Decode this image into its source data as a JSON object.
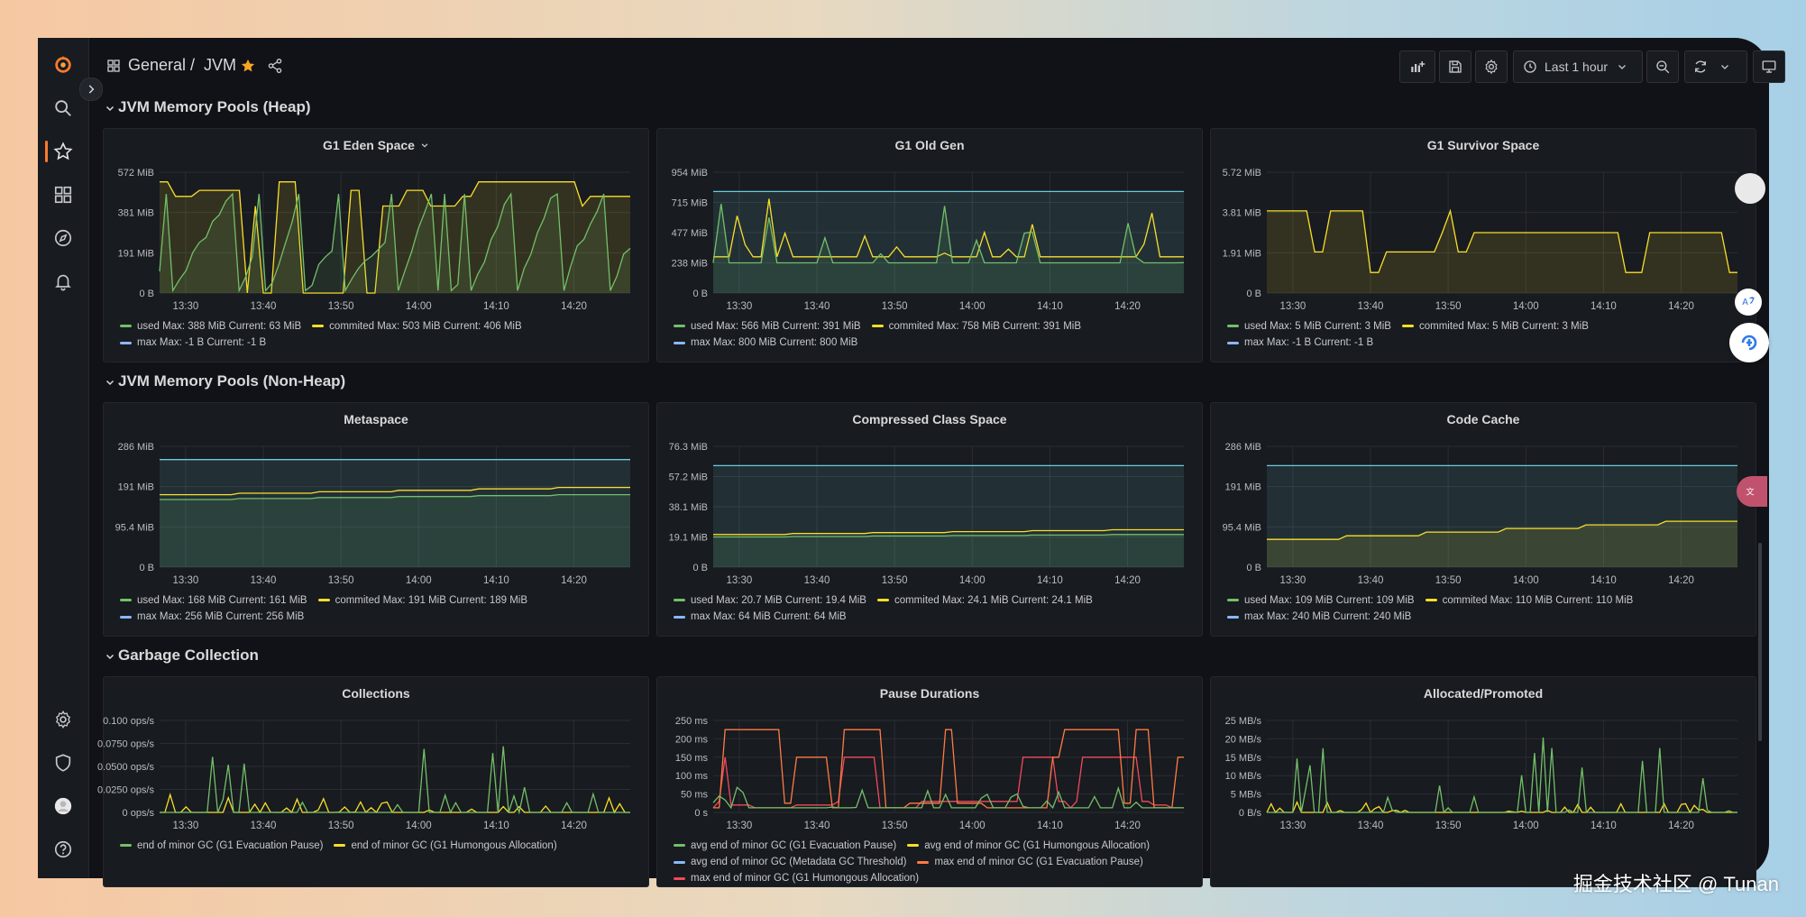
{
  "breadcrumb": {
    "parent": "General",
    "separator": "/",
    "current": "JVM"
  },
  "time_picker": {
    "label": "Last 1 hour"
  },
  "rows": [
    {
      "title": "JVM Memory Pools (Heap)"
    },
    {
      "title": "JVM Memory Pools (Non-Heap)"
    },
    {
      "title": "Garbage Collection"
    }
  ],
  "x_ticks": [
    "13:30",
    "13:40",
    "13:50",
    "14:00",
    "14:10",
    "14:20"
  ],
  "panels": [
    {
      "title": "G1 Eden Space",
      "has_menu": true,
      "y_ticks": [
        "572 MiB",
        "381 MiB",
        "191 MiB",
        "0 B"
      ],
      "legend": [
        [
          {
            "color": "#73bf69",
            "text": "used  Max: 388 MiB  Current: 63 MiB"
          },
          {
            "color": "#fade2a",
            "text": "commited  Max: 503 MiB  Current: 406 MiB"
          }
        ],
        [
          {
            "color": "#8ab8ff",
            "text": "max  Max: -1 B  Current: -1 B"
          }
        ]
      ]
    },
    {
      "title": "G1 Old Gen",
      "y_ticks": [
        "954 MiB",
        "715 MiB",
        "477 MiB",
        "238 MiB",
        "0 B"
      ],
      "legend": [
        [
          {
            "color": "#73bf69",
            "text": "used  Max: 566 MiB  Current: 391 MiB"
          },
          {
            "color": "#fade2a",
            "text": "commited  Max: 758 MiB  Current: 391 MiB"
          }
        ],
        [
          {
            "color": "#8ab8ff",
            "text": "max  Max: 800 MiB  Current: 800 MiB"
          }
        ]
      ]
    },
    {
      "title": "G1 Survivor Space",
      "y_ticks": [
        "5.72 MiB",
        "3.81 MiB",
        "1.91 MiB",
        "0 B"
      ],
      "legend": [
        [
          {
            "color": "#73bf69",
            "text": "used  Max: 5 MiB  Current: 3 MiB"
          },
          {
            "color": "#fade2a",
            "text": "commited  Max: 5 MiB  Current: 3 MiB"
          }
        ],
        [
          {
            "color": "#8ab8ff",
            "text": "max  Max: -1 B  Current: -1 B"
          }
        ]
      ]
    },
    {
      "title": "Metaspace",
      "y_ticks": [
        "286 MiB",
        "191 MiB",
        "95.4 MiB",
        "0 B"
      ],
      "legend": [
        [
          {
            "color": "#73bf69",
            "text": "used  Max: 168 MiB  Current: 161 MiB"
          },
          {
            "color": "#fade2a",
            "text": "commited  Max: 191 MiB  Current: 189 MiB"
          }
        ],
        [
          {
            "color": "#8ab8ff",
            "text": "max  Max: 256 MiB  Current: 256 MiB"
          }
        ]
      ]
    },
    {
      "title": "Compressed Class Space",
      "y_ticks": [
        "76.3 MiB",
        "57.2 MiB",
        "38.1 MiB",
        "19.1 MiB",
        "0 B"
      ],
      "legend": [
        [
          {
            "color": "#73bf69",
            "text": "used  Max: 20.7 MiB  Current: 19.4 MiB"
          },
          {
            "color": "#fade2a",
            "text": "commited  Max: 24.1 MiB  Current: 24.1 MiB"
          }
        ],
        [
          {
            "color": "#8ab8ff",
            "text": "max  Max: 64 MiB  Current: 64 MiB"
          }
        ]
      ]
    },
    {
      "title": "Code Cache",
      "y_ticks": [
        "286 MiB",
        "191 MiB",
        "95.4 MiB",
        "0 B"
      ],
      "legend": [
        [
          {
            "color": "#73bf69",
            "text": "used  Max: 109 MiB  Current: 109 MiB"
          },
          {
            "color": "#fade2a",
            "text": "commited  Max: 110 MiB  Current: 110 MiB"
          }
        ],
        [
          {
            "color": "#8ab8ff",
            "text": "max  Max: 240 MiB  Current: 240 MiB"
          }
        ]
      ]
    },
    {
      "title": "Collections",
      "y_ticks": [
        "0.100 ops/s",
        "0.0750 ops/s",
        "0.0500 ops/s",
        "0.0250 ops/s",
        "0 ops/s"
      ],
      "legend": [
        [
          {
            "color": "#73bf69",
            "text": "end of minor GC (G1 Evacuation Pause)"
          },
          {
            "color": "#fade2a",
            "text": "end of minor GC (G1 Humongous Allocation)"
          }
        ]
      ]
    },
    {
      "title": "Pause Durations",
      "y_ticks": [
        "250 ms",
        "200 ms",
        "150 ms",
        "100 ms",
        "50 ms",
        "0 s"
      ],
      "legend": [
        [
          {
            "color": "#73bf69",
            "text": "avg end of minor GC (G1 Evacuation Pause)"
          },
          {
            "color": "#fade2a",
            "text": "avg end of minor GC (G1 Humongous Allocation)"
          }
        ],
        [
          {
            "color": "#8ab8ff",
            "text": "avg end of minor GC (Metadata GC Threshold)"
          },
          {
            "color": "#ff7a45",
            "text": "max end of minor GC (G1 Evacuation Pause)"
          }
        ],
        [
          {
            "color": "#f2495c",
            "text": "max end of minor GC (G1 Humongous Allocation)"
          }
        ]
      ]
    },
    {
      "title": "Allocated/Promoted",
      "y_ticks": [
        "25 MB/s",
        "20 MB/s",
        "15 MB/s",
        "10 MB/s",
        "5 MB/s",
        "0 B/s"
      ],
      "legend": []
    }
  ],
  "colors": {
    "used": "#73bf69",
    "commited": "#fade2a",
    "max": "#6ccadc",
    "orange": "#ff7a45",
    "red": "#f2495c",
    "accent": "#ff7a2f"
  },
  "watermark": "掘金技术社区 @ Tunan"
}
